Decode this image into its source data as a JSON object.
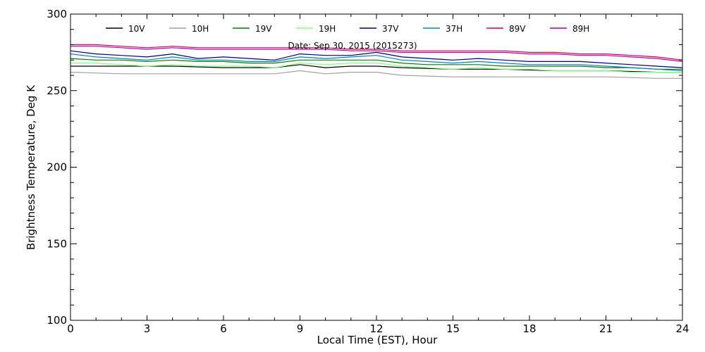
{
  "chart_data": {
    "type": "line",
    "title": "",
    "annotation": "Date: Sep 30, 2015 (2015273)",
    "xlabel": "Local Time (EST), Hour",
    "ylabel": "Brightness Temperature, Deg K",
    "xlim": [
      0,
      24
    ],
    "ylim": [
      100,
      300
    ],
    "xticks": [
      0,
      3,
      6,
      9,
      12,
      15,
      18,
      21,
      24
    ],
    "yticks": [
      100,
      150,
      200,
      250,
      300
    ],
    "grid": false,
    "legend_position": "top",
    "series": [
      {
        "name": "10V",
        "color": "#000000",
        "x": [
          0,
          2,
          4,
          6,
          8,
          9,
          10,
          11,
          12,
          13,
          15,
          17,
          19,
          21,
          23,
          24
        ],
        "y": [
          266,
          266,
          266,
          265,
          265,
          267,
          265,
          266,
          266,
          265,
          264,
          264,
          263,
          263,
          262,
          262
        ]
      },
      {
        "name": "10H",
        "color": "#a0a0a0",
        "x": [
          0,
          2,
          4,
          6,
          8,
          9,
          10,
          11,
          12,
          13,
          15,
          17,
          19,
          21,
          23,
          24
        ],
        "y": [
          262,
          261,
          261,
          261,
          261,
          263,
          261,
          262,
          262,
          260,
          259,
          259,
          259,
          259,
          258,
          258
        ]
      },
      {
        "name": "19V",
        "color": "#008000",
        "x": [
          0,
          1,
          2,
          3,
          4,
          5,
          6,
          7,
          8,
          9,
          10,
          11,
          12,
          13,
          14,
          15,
          16,
          17,
          18,
          19,
          20,
          21,
          22,
          23,
          24
        ],
        "y": [
          271,
          270,
          270,
          269,
          270,
          269,
          269,
          268,
          268,
          270,
          270,
          270,
          270,
          268,
          267,
          267,
          267,
          266,
          266,
          266,
          266,
          265,
          265,
          264,
          264
        ]
      },
      {
        "name": "19H",
        "color": "#80ff80",
        "x": [
          0,
          1,
          2,
          3,
          4,
          5,
          6,
          7,
          8,
          9,
          10,
          11,
          12,
          13,
          14,
          15,
          16,
          17,
          18,
          19,
          20,
          21,
          22,
          23,
          24
        ],
        "y": [
          268,
          268,
          267,
          266,
          267,
          266,
          266,
          266,
          265,
          268,
          267,
          268,
          268,
          266,
          265,
          264,
          265,
          264,
          264,
          263,
          263,
          263,
          262,
          262,
          262
        ]
      },
      {
        "name": "37V",
        "color": "#000080",
        "x": [
          0,
          1,
          2,
          3,
          4,
          5,
          6,
          7,
          8,
          9,
          10,
          11,
          12,
          13,
          14,
          15,
          16,
          17,
          18,
          19,
          20,
          21,
          22,
          23,
          24
        ],
        "y": [
          276,
          274,
          273,
          272,
          274,
          271,
          272,
          271,
          270,
          274,
          273,
          273,
          275,
          272,
          271,
          270,
          271,
          270,
          269,
          269,
          269,
          268,
          267,
          266,
          265
        ]
      },
      {
        "name": "37H",
        "color": "#0080c0",
        "x": [
          0,
          1,
          2,
          3,
          4,
          5,
          6,
          7,
          8,
          9,
          10,
          11,
          12,
          13,
          14,
          15,
          16,
          17,
          18,
          19,
          20,
          21,
          22,
          23,
          24
        ],
        "y": [
          274,
          272,
          271,
          270,
          272,
          270,
          270,
          269,
          269,
          272,
          271,
          272,
          273,
          270,
          269,
          268,
          269,
          268,
          267,
          267,
          267,
          266,
          265,
          264,
          263
        ]
      },
      {
        "name": "89V",
        "color": "#d0004f",
        "x": [
          0,
          1,
          2,
          3,
          4,
          5,
          6,
          7,
          8,
          9,
          10,
          11,
          12,
          13,
          14,
          15,
          16,
          17,
          18,
          19,
          20,
          21,
          22,
          23,
          24
        ],
        "y": [
          280,
          280,
          279,
          278,
          279,
          278,
          278,
          278,
          278,
          278,
          278,
          277,
          277,
          276,
          276,
          276,
          276,
          276,
          275,
          275,
          274,
          274,
          273,
          272,
          270
        ]
      },
      {
        "name": "89H",
        "color": "#b000b0",
        "x": [
          0,
          1,
          2,
          3,
          4,
          5,
          6,
          7,
          8,
          9,
          10,
          11,
          12,
          13,
          14,
          15,
          16,
          17,
          18,
          19,
          20,
          21,
          22,
          23,
          24
        ],
        "y": [
          279,
          279,
          278,
          277,
          278,
          277,
          277,
          277,
          277,
          277,
          277,
          276,
          276,
          275,
          275,
          275,
          275,
          275,
          274,
          274,
          273,
          273,
          272,
          271,
          269
        ]
      }
    ]
  }
}
